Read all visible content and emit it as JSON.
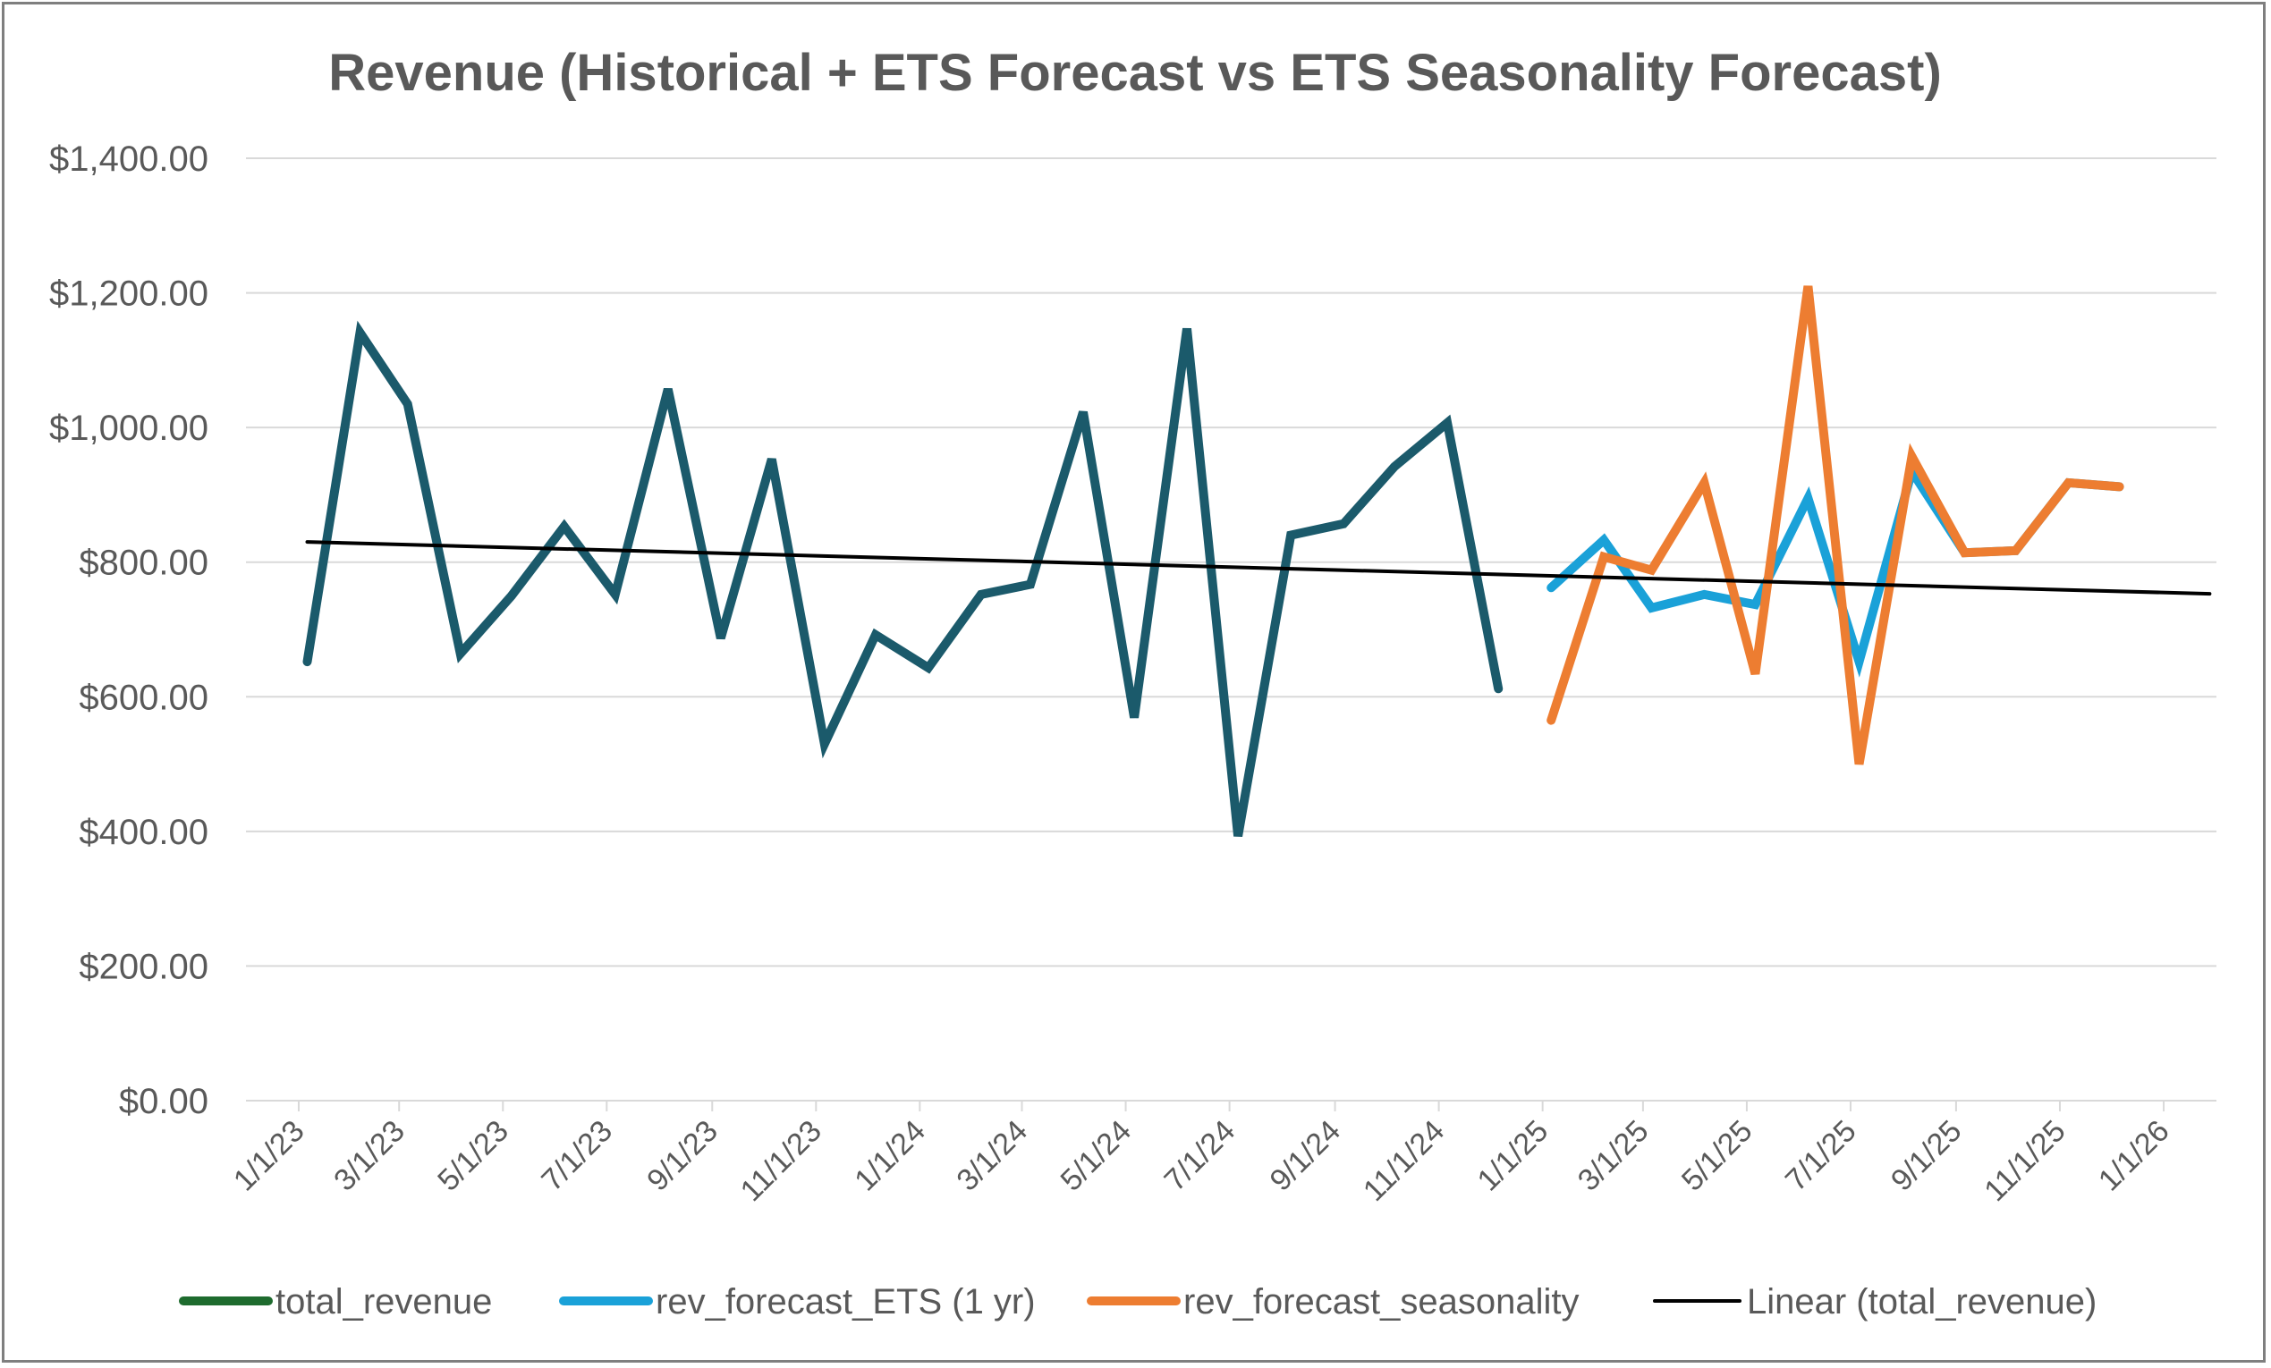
{
  "chart_data": {
    "type": "line",
    "title": "Revenue (Historical + ETS Forecast vs ETS Seasonality Forecast)",
    "xlabel": "",
    "ylabel": "",
    "ylim": [
      0,
      1400
    ],
    "y_ticks": [
      "$0.00",
      "$200.00",
      "$400.00",
      "$600.00",
      "$800.00",
      "$1,000.00",
      "$1,200.00",
      "$1,400.00"
    ],
    "y_tick_values": [
      0,
      200,
      400,
      600,
      800,
      1000,
      1200,
      1400
    ],
    "x_range": [
      "2022-12-01",
      "2026-02-01"
    ],
    "x_ticks": [
      "1/1/23",
      "3/1/23",
      "5/1/23",
      "7/1/23",
      "9/1/23",
      "11/1/23",
      "1/1/24",
      "3/1/24",
      "5/1/24",
      "7/1/24",
      "9/1/24",
      "11/1/24",
      "1/1/25",
      "3/1/25",
      "5/1/25",
      "7/1/25",
      "9/1/25",
      "11/1/25",
      "1/1/26"
    ],
    "x_tick_dates": [
      "2023-01-01",
      "2023-03-01",
      "2023-05-01",
      "2023-07-01",
      "2023-09-01",
      "2023-11-01",
      "2024-01-01",
      "2024-03-01",
      "2024-05-01",
      "2024-07-01",
      "2024-09-01",
      "2024-11-01",
      "2025-01-01",
      "2025-03-01",
      "2025-05-01",
      "2025-07-01",
      "2025-09-01",
      "2025-11-01",
      "2026-01-01"
    ],
    "grid": true,
    "legend_position": "bottom",
    "series": [
      {
        "name": "total_revenue",
        "color": "#1b5a6b",
        "legend_color": "#1e6b2e",
        "points": [
          [
            "2023-01-06",
            652
          ],
          [
            "2023-02-06",
            1141
          ],
          [
            "2023-03-06",
            1035
          ],
          [
            "2023-04-06",
            664
          ],
          [
            "2023-05-06",
            750
          ],
          [
            "2023-06-06",
            853
          ],
          [
            "2023-07-06",
            752
          ],
          [
            "2023-08-06",
            1057
          ],
          [
            "2023-09-06",
            687
          ],
          [
            "2023-10-06",
            953
          ],
          [
            "2023-11-06",
            530
          ],
          [
            "2023-12-06",
            692
          ],
          [
            "2024-01-06",
            643
          ],
          [
            "2024-02-06",
            752
          ],
          [
            "2024-03-06",
            767
          ],
          [
            "2024-04-06",
            1023
          ],
          [
            "2024-05-06",
            569
          ],
          [
            "2024-06-06",
            1147
          ],
          [
            "2024-07-06",
            393
          ],
          [
            "2024-08-06",
            840
          ],
          [
            "2024-09-06",
            857
          ],
          [
            "2024-10-06",
            942
          ],
          [
            "2024-11-06",
            1007
          ],
          [
            "2024-12-06",
            612
          ]
        ]
      },
      {
        "name": "rev_forecast_ETS (1 yr)",
        "color": "#1aa1d8",
        "points": [
          [
            "2025-01-06",
            762
          ],
          [
            "2025-02-06",
            833
          ],
          [
            "2025-03-06",
            732
          ],
          [
            "2025-04-06",
            752
          ],
          [
            "2025-05-06",
            737
          ],
          [
            "2025-06-06",
            895
          ],
          [
            "2025-07-06",
            652
          ],
          [
            "2025-08-06",
            935
          ],
          [
            "2025-09-06",
            814
          ],
          [
            "2025-10-06",
            817
          ],
          [
            "2025-11-06",
            918
          ],
          [
            "2025-12-06",
            912
          ]
        ]
      },
      {
        "name": "rev_forecast_seasonality",
        "color": "#ed7d31",
        "points": [
          [
            "2025-01-06",
            565
          ],
          [
            "2025-02-06",
            808
          ],
          [
            "2025-03-06",
            788
          ],
          [
            "2025-04-06",
            918
          ],
          [
            "2025-05-06",
            634
          ],
          [
            "2025-06-06",
            1210
          ],
          [
            "2025-07-06",
            500
          ],
          [
            "2025-08-06",
            957
          ],
          [
            "2025-09-06",
            814
          ],
          [
            "2025-10-06",
            817
          ],
          [
            "2025-11-06",
            918
          ],
          [
            "2025-12-06",
            912
          ]
        ]
      },
      {
        "name": "Linear (total_revenue)",
        "color": "#000000",
        "trendline": true,
        "points": [
          [
            "2023-01-06",
            830
          ],
          [
            "2026-01-28",
            753
          ]
        ]
      }
    ]
  }
}
